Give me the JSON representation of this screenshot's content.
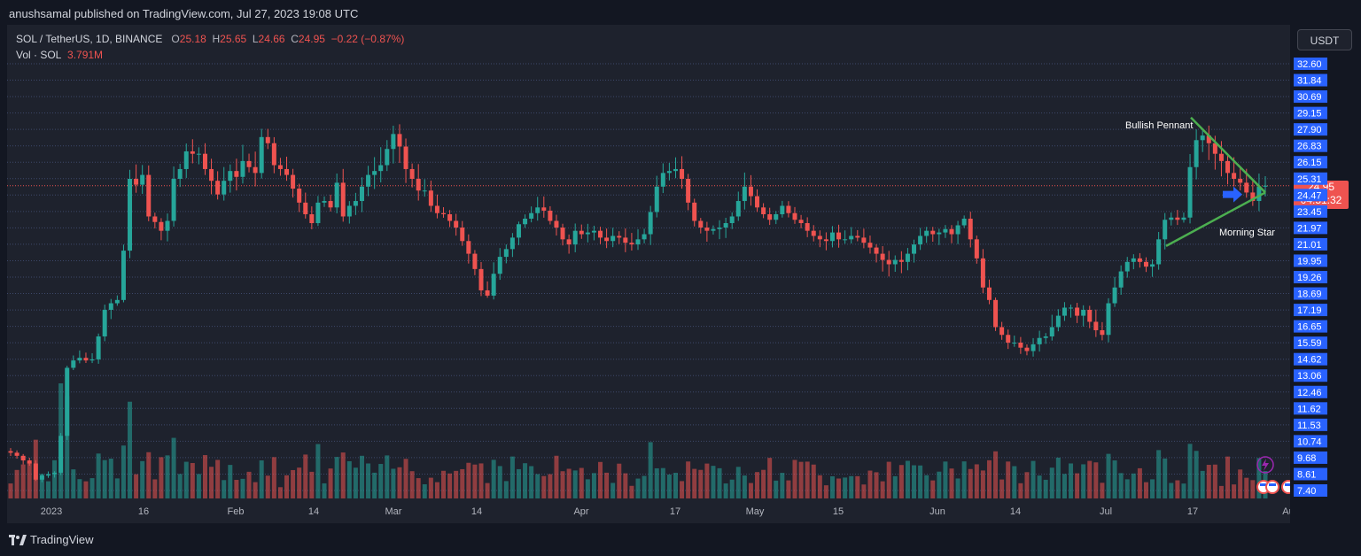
{
  "publisher_line": "anushsamal published on TradingView.com, Jul 27, 2023 19:08 UTC",
  "legend": {
    "symbol": "SOL / TetherUS, 1D, BINANCE",
    "o_label": "O",
    "o_value": "25.18",
    "h_label": "H",
    "h_value": "25.65",
    "l_label": "L",
    "l_value": "24.66",
    "c_label": "C",
    "c_value": "24.95",
    "change": "−0.22 (−0.87%)",
    "vol_label": "Vol · SOL",
    "vol_value": "3.791M"
  },
  "currency_button": "USDT",
  "last_price": "24.95",
  "countdown": "04:51:32",
  "footer_brand": "TradingView",
  "colors": {
    "up": "#26a69a",
    "down": "#ef5350",
    "axis_label_bg": "#2962ff",
    "pattern_line": "#4caf50",
    "arrow": "#2962ff"
  },
  "chart_data": {
    "type": "candlestick",
    "symbol": "SOL/USDT",
    "interval": "1D",
    "y_ticks": [
      32.6,
      31.84,
      30.69,
      29.15,
      27.9,
      26.83,
      26.15,
      25.31,
      24.47,
      23.45,
      21.97,
      21.01,
      19.95,
      19.26,
      18.69,
      17.19,
      16.65,
      15.59,
      14.62,
      13.06,
      12.46,
      11.62,
      11.53,
      10.74,
      9.68,
      8.61,
      7.4
    ],
    "x_ticks": [
      "2023",
      "16",
      "Feb",
      "14",
      "Mar",
      "14",
      "Apr",
      "17",
      "May",
      "15",
      "Jun",
      "14",
      "Jul",
      "17",
      "Au"
    ],
    "annotations": [
      "Bullish Pennant",
      "Morning Star"
    ],
    "close": [
      10.0,
      9.8,
      9.5,
      9.3,
      8.2,
      8.5,
      8.6,
      8.7,
      11.0,
      13.8,
      14.5,
      14.7,
      14.5,
      14.6,
      16.0,
      17.2,
      17.8,
      18.1,
      20.6,
      25.3,
      25.0,
      25.5,
      23.0,
      22.5,
      21.8,
      22.6,
      25.3,
      25.8,
      26.6,
      26.5,
      26.5,
      25.8,
      25.2,
      24.5,
      25.2,
      25.7,
      25.4,
      26.2,
      25.9,
      25.6,
      27.4,
      27.0,
      26.0,
      25.8,
      25.5,
      24.8,
      24.0,
      23.2,
      22.4,
      24.0,
      24.1,
      23.7,
      25.1,
      23.0,
      23.8,
      24.1,
      24.9,
      25.5,
      25.7,
      26.0,
      26.7,
      27.6,
      26.8,
      25.8,
      25.3,
      24.7,
      24.7,
      23.8,
      23.3,
      23.2,
      22.6,
      22.0,
      21.2,
      20.4,
      19.6,
      18.8,
      18.5,
      19.4,
      20.2,
      20.7,
      21.4,
      22.3,
      22.8,
      23.3,
      23.7,
      23.5,
      22.6,
      22.0,
      21.3,
      21.0,
      21.8,
      21.6,
      21.7,
      21.8,
      21.4,
      21.2,
      21.5,
      21.4,
      21.1,
      21.0,
      21.3,
      21.6,
      23.4,
      24.9,
      25.6,
      25.7,
      25.8,
      25.3,
      24.0,
      22.6,
      22.0,
      21.8,
      21.9,
      22.0,
      22.4,
      23.0,
      24.1,
      24.9,
      24.4,
      23.7,
      23.2,
      22.7,
      23.2,
      23.8,
      23.3,
      22.7,
      22.4,
      21.8,
      21.5,
      21.3,
      21.2,
      21.7,
      21.3,
      21.3,
      21.5,
      21.4,
      21.1,
      20.8,
      20.4,
      20.0,
      19.8,
      20.0,
      19.9,
      20.4,
      21.0,
      21.5,
      21.8,
      21.6,
      21.7,
      21.9,
      21.6,
      22.2,
      22.8,
      21.3,
      20.1,
      18.9,
      18.1,
      16.6,
      16.1,
      15.6,
      15.6,
      15.3,
      15.1,
      15.5,
      15.9,
      16.0,
      16.6,
      17.0,
      17.4,
      17.4,
      17.0,
      17.2,
      16.8,
      16.4,
      16.1,
      17.8,
      18.9,
      19.5,
      19.9,
      20.1,
      19.9,
      19.7,
      19.8,
      21.3,
      22.7,
      22.9,
      22.7,
      22.9,
      25.9,
      27.2,
      27.5,
      27.0,
      26.5,
      26.2,
      25.6,
      25.3,
      25.1,
      24.6,
      24.1,
      24.9,
      24.95
    ]
  }
}
